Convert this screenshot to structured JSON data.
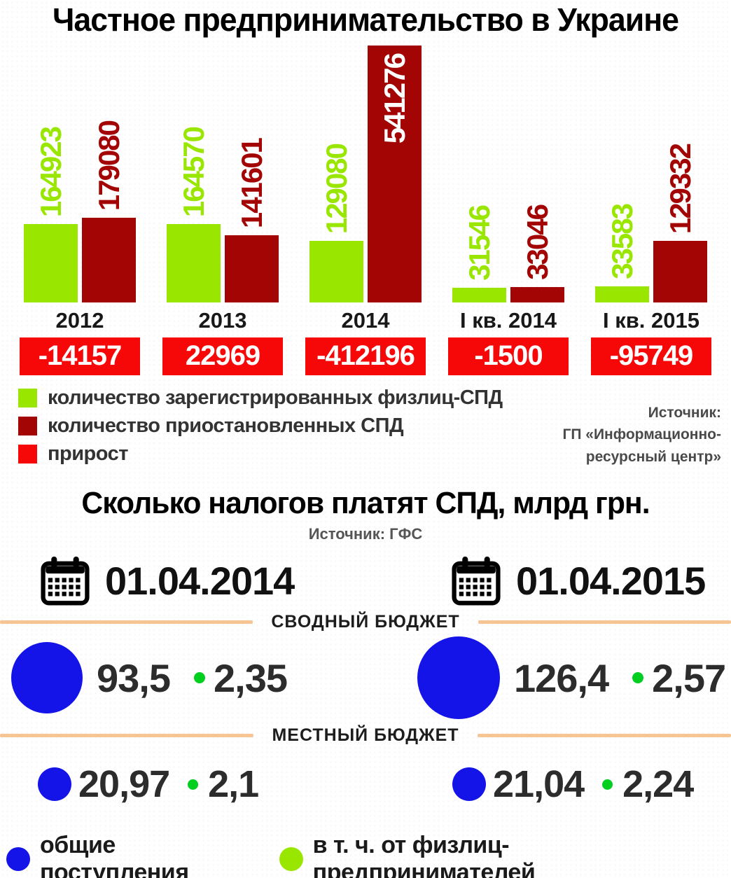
{
  "colors": {
    "registered_green": "#99e600",
    "suspended_dark_red": "#a30505",
    "growth_red": "#f70808",
    "total_blue": "#1414e8",
    "fiz_dot_green": "#00cf1f",
    "divider_orange": "#f7c493"
  },
  "chart_data": [
    {
      "type": "bar",
      "title": "Частное предпринимательство в Украине",
      "categories": [
        "2012",
        "2013",
        "2014",
        "I кв. 2014",
        "I кв. 2015"
      ],
      "series": [
        {
          "name": "количество зарегистрированных физлиц-СПД",
          "color": "#99e600",
          "values": [
            164923,
            164570,
            129080,
            31546,
            33583
          ]
        },
        {
          "name": "количество приостановленных СПД",
          "color": "#a30505",
          "values": [
            179080,
            141601,
            541276,
            33046,
            129332
          ]
        }
      ],
      "extra_row": {
        "name": "прирост",
        "color": "#f70808",
        "values": [
          "-14157",
          "22969",
          "-412196",
          "-1500",
          "-95749"
        ]
      },
      "ylim": [
        0,
        541276
      ],
      "grid": false,
      "legend_position": "bottom-left",
      "source_lines": [
        "Источник:",
        "ГП «Информационно-",
        "ресурсный центр»"
      ]
    },
    {
      "type": "bubble",
      "title": "Сколько налогов платят СПД, млрд грн.",
      "source": "Источник: ГФС",
      "dates": [
        "01.04.2014",
        "01.04.2015"
      ],
      "rows": [
        {
          "label": "СВОДНЫЙ БЮДЖЕТ",
          "cells": [
            {
              "total": 93.5,
              "total_label": "93,5",
              "fiz": 2.35,
              "fiz_label": "2,35"
            },
            {
              "total": 126.4,
              "total_label": "126,4",
              "fiz": 2.57,
              "fiz_label": "2,57"
            }
          ]
        },
        {
          "label": "МЕСТНЫЙ БЮДЖЕТ",
          "cells": [
            {
              "total": 20.97,
              "total_label": "20,97",
              "fiz": 2.1,
              "fiz_label": "2,1"
            },
            {
              "total": 21.04,
              "total_label": "21,04",
              "fiz": 2.24,
              "fiz_label": "2,24"
            }
          ]
        }
      ],
      "legend": [
        {
          "label": "общие поступления",
          "color": "#1414e8"
        },
        {
          "label": "в  т. ч.  от физлиц-предпринимателей",
          "color": "#99e600"
        }
      ]
    }
  ]
}
